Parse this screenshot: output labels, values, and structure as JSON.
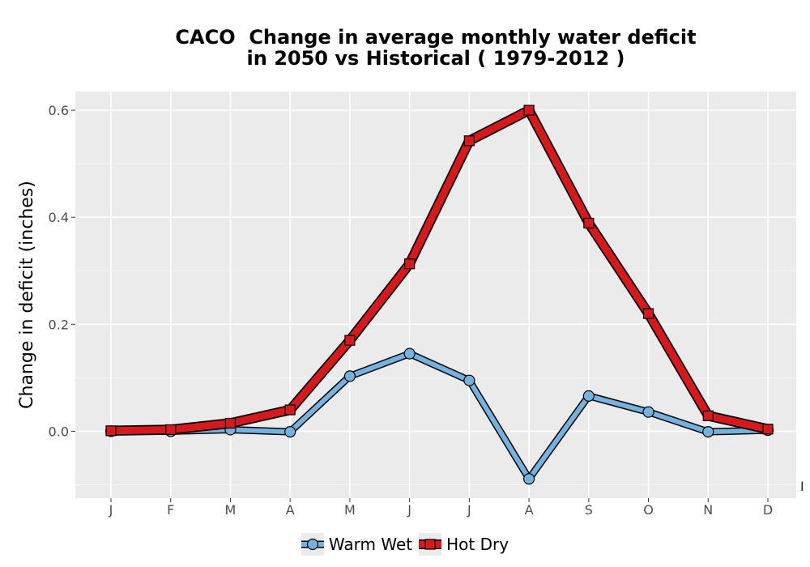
{
  "chart_data": {
    "type": "line",
    "title_line1": "CACO  Change in average monthly water deficit",
    "title_line2": "in 2050 vs Historical ( 1979-2012 )",
    "xlabel": "",
    "ylabel": "Change in deficit (inches)",
    "categories": [
      "J",
      "F",
      "M",
      "A",
      "M",
      "J",
      "J",
      "A",
      "S",
      "O",
      "N",
      "D"
    ],
    "yticks": [
      "0.0",
      "0.2",
      "0.4",
      "0.6"
    ],
    "ylim": [
      -0.125,
      0.635
    ],
    "grid": true,
    "legend_position": "bottom",
    "series": [
      {
        "name": "Warm Wet",
        "color": "#74b2e0",
        "marker": "circle",
        "values": [
          0.0,
          0.0,
          0.003,
          -0.001,
          0.103,
          0.145,
          0.095,
          -0.089,
          0.066,
          0.036,
          -0.001,
          0.002
        ]
      },
      {
        "name": "Hot Dry",
        "color": "#d7191c",
        "marker": "square",
        "values": [
          0.001,
          0.003,
          0.015,
          0.04,
          0.17,
          0.313,
          0.543,
          0.6,
          0.389,
          0.22,
          0.029,
          0.004
        ]
      }
    ],
    "annotation": "I"
  }
}
